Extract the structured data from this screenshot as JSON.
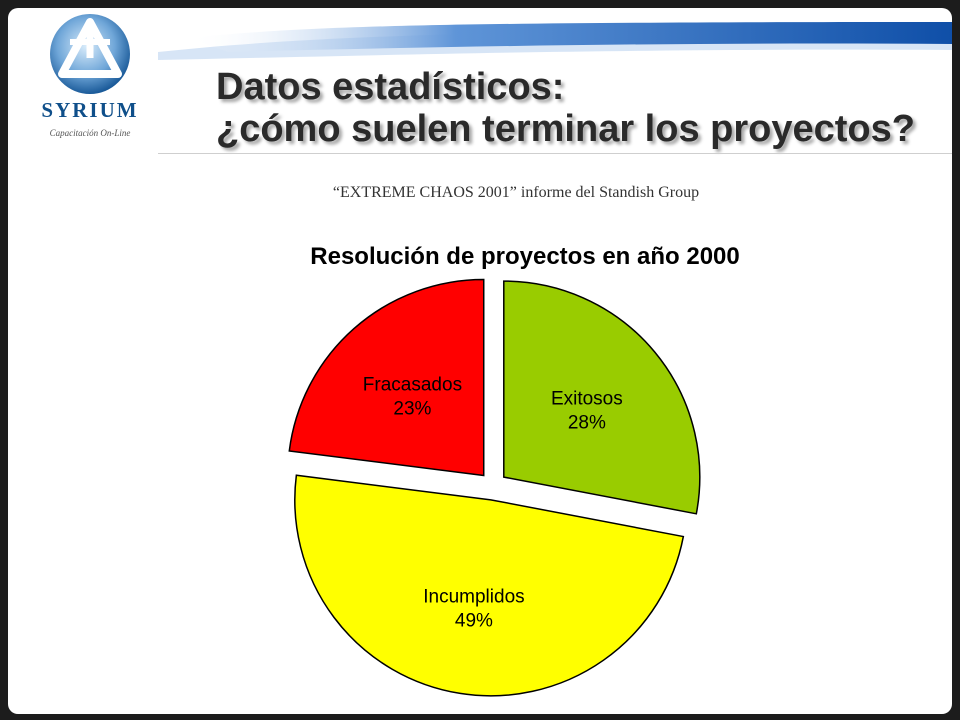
{
  "brand": {
    "name": "SYRIUM",
    "tagline": "Capacitación On-Line"
  },
  "slide": {
    "title_line1": "Datos estadísticos:",
    "title_line2": "¿cómo suelen terminar los proyectos?",
    "subtitle": "“EXTREME CHAOS 2001” informe del Standish Group"
  },
  "chart_data": {
    "type": "pie",
    "title": "Resolución de proyectos en año 2000",
    "slices": [
      {
        "label": "Exitosos",
        "value": 28,
        "value_label": "28%",
        "color": "#99cc00"
      },
      {
        "label": "Incumplidos",
        "value": 49,
        "value_label": "49%",
        "color": "#ffff00"
      },
      {
        "label": "Fracasados",
        "value": 23,
        "value_label": "23%",
        "color": "#ff0000"
      }
    ],
    "exploded": true,
    "legend": "none"
  },
  "colors": {
    "brand_blue": "#0f4f8a",
    "header_blue": "#1565c0"
  }
}
